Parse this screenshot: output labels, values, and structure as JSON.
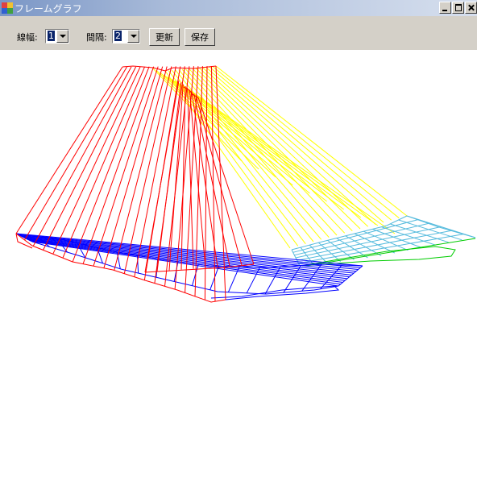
{
  "window": {
    "title": "フレームグラフ"
  },
  "toolbar": {
    "line_width_label": "線幅:",
    "line_width_value": "1",
    "interval_label": "間隔:",
    "interval_value": "2",
    "update_button": "更新",
    "save_button": "保存"
  },
  "colors": {
    "red": "#ff0000",
    "blue": "#0000ff",
    "yellow": "#ffff00",
    "cyan": "#55bbdd",
    "green": "#00cc00"
  }
}
